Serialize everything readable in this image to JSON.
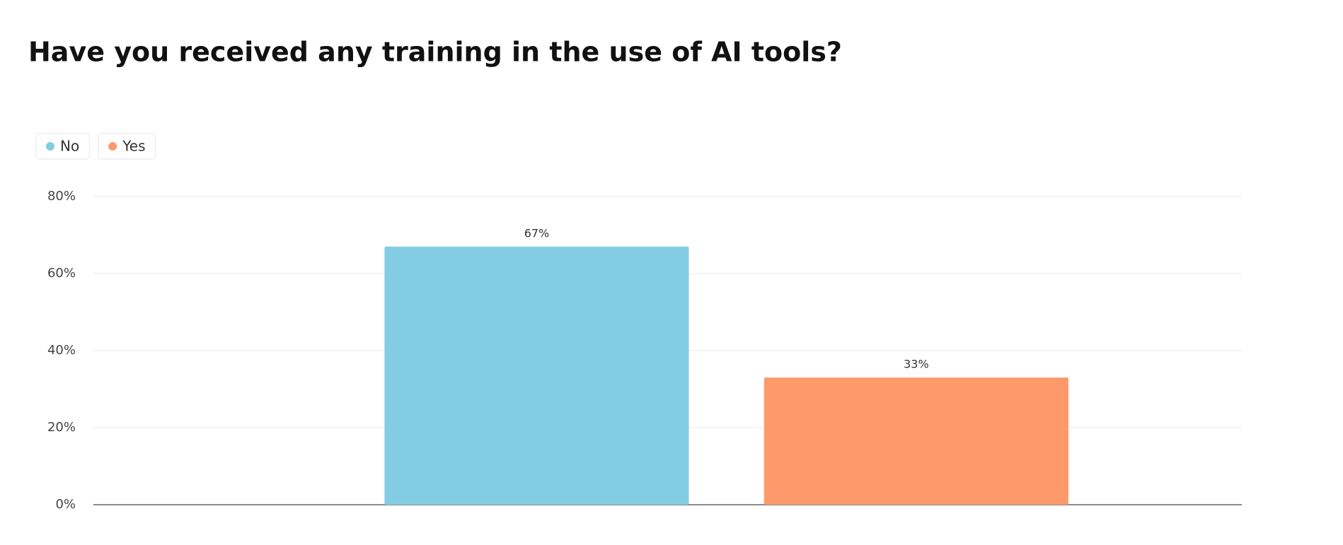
{
  "chart_data": {
    "type": "bar",
    "title": "Have you received any training in the use of AI tools?",
    "categories": [
      null
    ],
    "series": [
      {
        "name": "No",
        "color": "#82cde4",
        "values": [
          67
        ],
        "value_labels": [
          "67%"
        ]
      },
      {
        "name": "Yes",
        "color": "#fe996b",
        "values": [
          33
        ],
        "value_labels": [
          "33%"
        ]
      }
    ],
    "ylim": [
      0,
      80
    ],
    "yticks": [
      {
        "value": 0,
        "label": "0%"
      },
      {
        "value": 20,
        "label": "20%"
      },
      {
        "value": 40,
        "label": "40%"
      },
      {
        "value": 60,
        "label": "60%"
      },
      {
        "value": 80,
        "label": "80%"
      }
    ],
    "grid": true,
    "legend": "top-left"
  }
}
